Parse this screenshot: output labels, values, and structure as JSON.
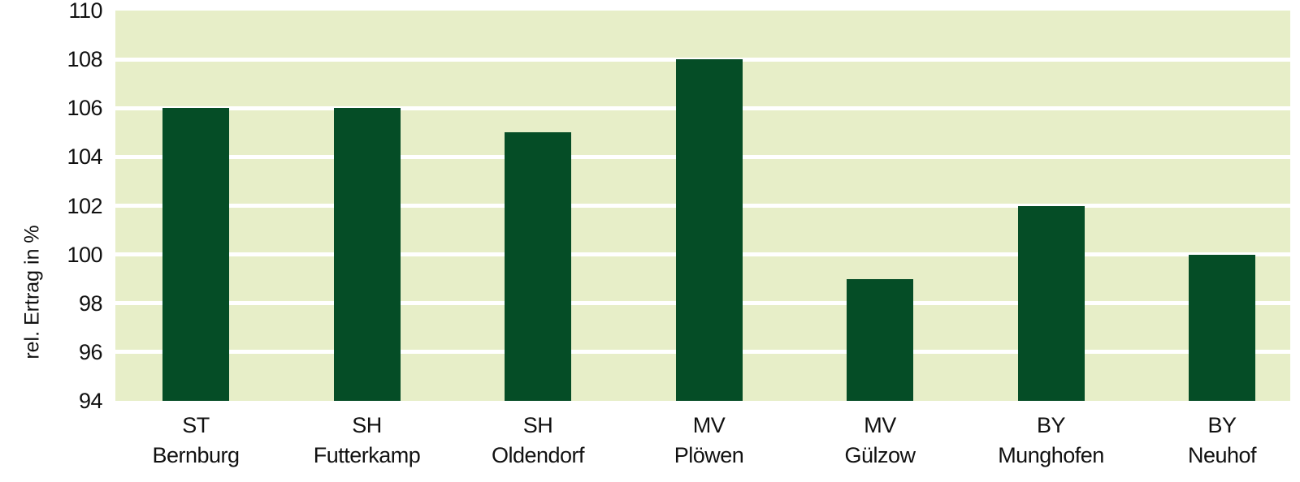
{
  "chart_data": {
    "type": "bar",
    "title": "",
    "xlabel": "",
    "ylabel": "rel. Ertrag in %",
    "categories": [
      "ST Bernburg",
      "SH Futterkamp",
      "SH Oldendorf",
      "MV Plöwen",
      "MV Gülzow",
      "BY Munghofen",
      "BY Neuhof"
    ],
    "values": [
      106,
      106,
      105,
      108,
      99,
      102,
      100
    ],
    "ylim": [
      94,
      110
    ],
    "yticks": [
      94,
      96,
      98,
      100,
      102,
      104,
      106,
      108,
      110
    ],
    "grid": "horizontal white lines at each y tick",
    "legend_position": "none",
    "category_label_lines": 2
  },
  "colors": {
    "bar": "#054D26",
    "plot_bg": "#E7EEC8",
    "gridline": "#FFFFFF",
    "text": "#111111",
    "page_bg": "#FFFFFF"
  }
}
